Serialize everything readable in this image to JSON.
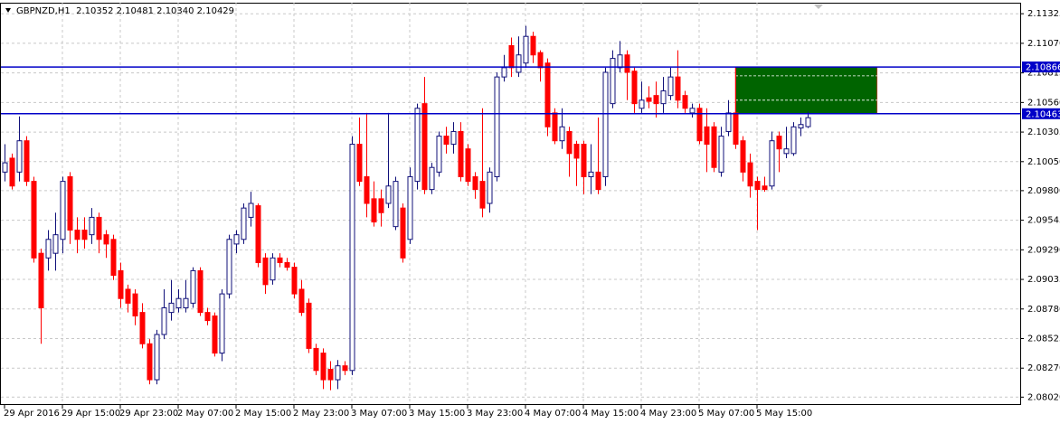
{
  "chart_data": {
    "type": "candlestick",
    "title": "GBPNZD,H1  2.10352 2.10481 2.10340 2.10429",
    "categories": [
      "29 Apr 2016",
      null,
      null,
      null,
      null,
      null,
      null,
      null,
      "29 Apr 15:00",
      null,
      null,
      null,
      null,
      null,
      null,
      null,
      "29 Apr 23:00",
      null,
      null,
      null,
      null,
      null,
      null,
      null,
      "2 May 07:00",
      null,
      null,
      null,
      null,
      null,
      null,
      null,
      "2 May 15:00",
      null,
      null,
      null,
      null,
      null,
      null,
      null,
      "2 May 23:00",
      null,
      null,
      null,
      null,
      null,
      null,
      null,
      "3 May 07:00",
      null,
      null,
      null,
      null,
      null,
      null,
      null,
      "3 May 15:00",
      null,
      null,
      null,
      null,
      null,
      null,
      null,
      "3 May 23:00",
      null,
      null,
      null,
      null,
      null,
      null,
      null,
      "4 May 07:00",
      null,
      null,
      null,
      null,
      null,
      null,
      null,
      "4 May 15:00",
      null,
      null,
      null,
      null,
      null,
      null,
      null,
      "4 May 23:00",
      null,
      null,
      null,
      null,
      null,
      null,
      null,
      "5 May 07:00",
      null,
      null,
      null,
      null,
      null,
      null,
      null,
      "5 May 15:00",
      null,
      null,
      null,
      null,
      null,
      null,
      null
    ],
    "open": [
      2.0996,
      2.1008,
      2.0996,
      2.1023,
      2.0988,
      2.0926,
      2.0922,
      2.0926,
      2.0938,
      2.0992,
      2.0946,
      2.0946,
      2.0942,
      2.0957,
      2.0942,
      2.0938,
      2.0911,
      2.0895,
      2.0891,
      2.0875,
      2.0848,
      2.0817,
      2.0856,
      2.0875,
      2.0879,
      2.0879,
      2.0883,
      2.0911,
      2.0875,
      2.0872,
      2.084,
      2.0891,
      2.0934,
      2.0938,
      2.0957,
      2.0967,
      2.0922,
      2.0903,
      2.0922,
      2.0918,
      2.0914,
      2.0895,
      2.0883,
      2.0844,
      2.084,
      2.0826,
      2.0817,
      2.0829,
      2.0825,
      2.102,
      2.0992,
      2.0973,
      2.0973,
      2.0969,
      2.0949,
      2.0965,
      2.0938,
      2.0988,
      2.1055,
      2.0981,
      2.0996,
      2.1027,
      2.102,
      2.1031,
      2.1016,
      2.0992,
      2.0988,
      2.0969,
      2.0992,
      2.1078,
      2.1105,
      2.1082,
      2.109,
      2.1113,
      2.1099,
      2.109,
      2.1047,
      2.1023,
      2.1031,
      2.102,
      2.102,
      2.0992,
      2.0996,
      2.0992,
      2.1055,
      2.1086,
      2.1097,
      2.1083,
      2.1051,
      2.106,
      2.1062,
      2.1055,
      2.1062,
      2.1078,
      2.1062,
      2.1047,
      2.1051,
      2.1035,
      2.1035,
      2.0996,
      2.1031,
      2.1047,
      2.1023,
      2.1004,
      2.0988,
      2.0984,
      2.0984,
      2.1027,
      2.1012,
      2.1012,
      2.1034,
      2.10352
    ],
    "high": [
      2.102,
      2.1012,
      2.1044,
      2.1027,
      2.0992,
      2.093,
      2.0946,
      2.0961,
      2.0992,
      2.0996,
      2.0957,
      2.0957,
      2.0965,
      2.0961,
      2.0946,
      2.0942,
      2.0918,
      2.0899,
      2.0895,
      2.0883,
      2.0852,
      2.086,
      2.0895,
      2.0903,
      2.0895,
      2.0903,
      2.0914,
      2.0914,
      2.0879,
      2.0875,
      2.0895,
      2.0942,
      2.0946,
      2.0969,
      2.0979,
      2.0969,
      2.0926,
      2.0926,
      2.0926,
      2.0922,
      2.0918,
      2.0903,
      2.0887,
      2.0848,
      2.0844,
      2.0833,
      2.0834,
      2.0833,
      2.1027,
      2.1043,
      2.1047,
      2.0988,
      2.0981,
      2.1047,
      2.0992,
      2.0969,
      2.1,
      2.1055,
      2.1078,
      2.1004,
      2.1031,
      2.1035,
      2.1039,
      2.1039,
      2.102,
      2.0996,
      2.1051,
      2.1,
      2.1082,
      2.1097,
      2.1112,
      2.1113,
      2.1122,
      2.1117,
      2.1101,
      2.1094,
      2.1051,
      2.1051,
      2.1035,
      2.1023,
      2.1023,
      2.102,
      2.1043,
      2.1086,
      2.1101,
      2.1109,
      2.1101,
      2.1086,
      2.1074,
      2.107,
      2.1074,
      2.1078,
      2.1086,
      2.1101,
      2.1066,
      2.1055,
      2.1055,
      2.1051,
      2.1039,
      2.1035,
      2.1058,
      2.1086,
      2.1027,
      2.1012,
      2.0992,
      2.0992,
      2.1031,
      2.1031,
      2.1035,
      2.1039,
      2.1043,
      2.10481
    ],
    "low": [
      2.0988,
      2.0981,
      2.0988,
      2.0984,
      2.0918,
      2.0848,
      2.0911,
      2.0911,
      2.0926,
      2.0934,
      2.0926,
      2.093,
      2.0934,
      2.0926,
      2.0922,
      2.0903,
      2.0879,
      2.0875,
      2.0864,
      2.0844,
      2.0813,
      2.0813,
      2.0852,
      2.0868,
      2.0875,
      2.0875,
      2.0879,
      2.0872,
      2.0864,
      2.0837,
      2.0833,
      2.0887,
      2.0926,
      2.0934,
      2.0949,
      2.0914,
      2.0891,
      2.0899,
      2.0914,
      2.0911,
      2.0887,
      2.0872,
      2.084,
      2.0821,
      2.0809,
      2.0808,
      2.0809,
      2.0821,
      2.0821,
      2.0984,
      2.0957,
      2.0949,
      2.0949,
      2.0965,
      2.0946,
      2.0918,
      2.0934,
      2.0981,
      2.0977,
      2.0977,
      2.0992,
      2.1012,
      2.1012,
      2.0988,
      2.0984,
      2.0973,
      2.0957,
      2.0961,
      2.0988,
      2.1074,
      2.1078,
      2.1078,
      2.1086,
      2.109,
      2.1074,
      2.1027,
      2.102,
      2.1016,
      2.0992,
      2.0984,
      2.0977,
      2.0977,
      2.0977,
      2.0984,
      2.1051,
      2.1082,
      2.1058,
      2.1047,
      2.1047,
      2.1051,
      2.1043,
      2.1047,
      2.1058,
      2.1051,
      2.1047,
      2.1043,
      2.102,
      2.0996,
      2.0996,
      2.0992,
      2.1027,
      2.1016,
      2.0988,
      2.0974,
      2.0946,
      2.0979,
      2.0981,
      2.0996,
      2.1008,
      2.101,
      2.1027,
      2.1034
    ],
    "close": [
      2.1004,
      2.0984,
      2.1023,
      2.0988,
      2.0922,
      2.0879,
      2.0938,
      2.0942,
      2.0988,
      2.0946,
      2.0938,
      2.0938,
      2.0957,
      2.0938,
      2.0934,
      2.0907,
      2.0887,
      2.0883,
      2.0872,
      2.0848,
      2.0817,
      2.0856,
      2.0879,
      2.0883,
      2.0887,
      2.0887,
      2.0911,
      2.0875,
      2.0868,
      2.084,
      2.0891,
      2.0938,
      2.0942,
      2.0965,
      2.0969,
      2.0918,
      2.0899,
      2.0922,
      2.0918,
      2.0914,
      2.0891,
      2.0875,
      2.0844,
      2.0825,
      2.0817,
      2.0817,
      2.0829,
      2.0825,
      2.102,
      2.0988,
      2.0969,
      2.0953,
      2.0961,
      2.0984,
      2.0988,
      2.0922,
      2.0992,
      2.1051,
      2.0981,
      2.1,
      2.1027,
      2.102,
      2.1031,
      2.0992,
      2.0988,
      2.0981,
      2.0965,
      2.0996,
      2.1078,
      2.1086,
      2.1086,
      2.1097,
      2.1113,
      2.1097,
      2.1086,
      2.1035,
      2.1023,
      2.1035,
      2.1012,
      2.1008,
      2.0992,
      2.0996,
      2.0981,
      2.1082,
      2.1094,
      2.1097,
      2.1082,
      2.1055,
      2.1058,
      2.1057,
      2.1055,
      2.1066,
      2.1078,
      2.1058,
      2.1051,
      2.1051,
      2.1023,
      2.102,
      2.1,
      2.1027,
      2.1047,
      2.102,
      2.0996,
      2.0984,
      2.0981,
      2.0981,
      2.1023,
      2.1016,
      2.1016,
      2.1035,
      2.1037,
      2.10429
    ],
    "up_fill": "#ffffff",
    "up_line": "#10107a",
    "down_color": "#ff0000",
    "ylim": [
      2.0796,
      2.1142
    ],
    "yticks": [
      2.11325,
      {
        "value": 2.1107,
        "label": "2.11070"
      },
      2.10815,
      {
        "value": 2.1056,
        "label": "2.10560"
      },
      2.10305,
      {
        "value": 2.1005,
        "label": "2.10050"
      },
      {
        "value": 2.098,
        "label": "2.09800"
      },
      2.09545,
      {
        "value": 2.0929,
        "label": "2.09290"
      },
      2.09035,
      {
        "value": 2.0878,
        "label": "2.08780"
      },
      2.08525,
      {
        "value": 2.0827,
        "label": "2.08270"
      },
      {
        "value": 2.0802,
        "label": "2.08020"
      }
    ],
    "grid": true,
    "hlines": [
      2.10866,
      2.10463
    ],
    "hline_color": "#0000c8",
    "zone": {
      "x": [
        101,
        120.6
      ],
      "y": [
        2.10866,
        2.10463
      ],
      "levels": [
        2.1079,
        2.1058
      ],
      "color": "#006400"
    }
  }
}
